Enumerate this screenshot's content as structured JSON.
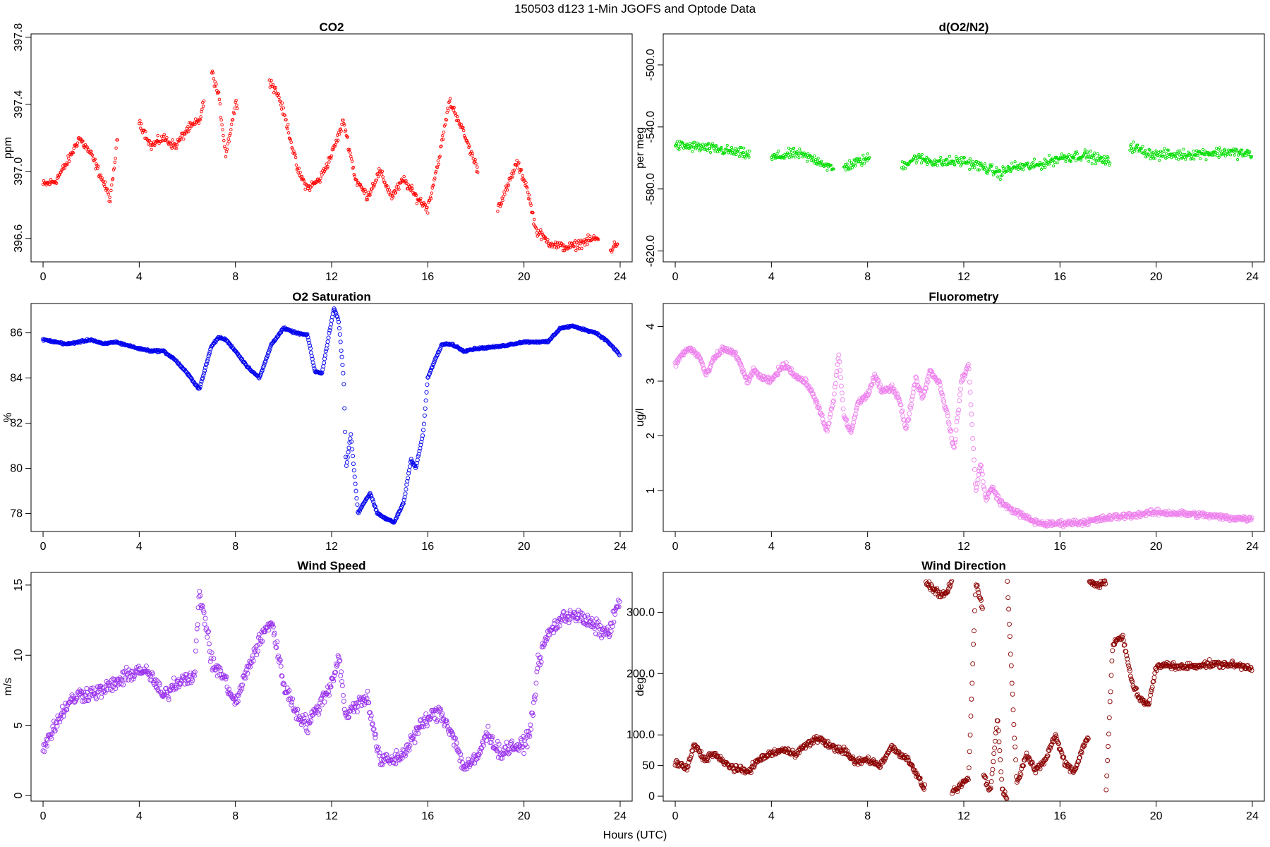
{
  "figure": {
    "title": "150503   d123   1-Min  JGOFS and Optode Data",
    "xlabel": "Hours (UTC)"
  },
  "chart_data": [
    {
      "type": "scatter",
      "title": "CO2",
      "ylabel": "ppm",
      "xlim": [
        -0.5,
        24.5
      ],
      "ylim": [
        396.46,
        397.82
      ],
      "yticks": [
        396.6,
        397.0,
        397.4,
        397.8
      ],
      "xticks": [
        0,
        4,
        8,
        12,
        16,
        20,
        24
      ],
      "ytick_rotate": true,
      "color": "#ff0000",
      "marker_r": 1.8,
      "spread": 0.04,
      "gaps": [
        [
          3.1,
          4.0
        ],
        [
          6.7,
          7.0
        ],
        [
          8.1,
          9.4
        ],
        [
          18.1,
          18.9
        ],
        [
          23.1,
          23.6
        ]
      ],
      "x": [
        0,
        0.5,
        1,
        1.5,
        2,
        2.5,
        2.8,
        3.1,
        4,
        4.5,
        5,
        5.5,
        6,
        6.5,
        7,
        7.3,
        7.6,
        8,
        9.4,
        9.8,
        10.2,
        10.6,
        11,
        11.5,
        12,
        12.5,
        13,
        13.5,
        14,
        14.5,
        15,
        15.5,
        16,
        16.5,
        16.9,
        17.3,
        17.7,
        18.1,
        18.9,
        19.3,
        19.7,
        20.1,
        20.5,
        21,
        21.5,
        22,
        22.5,
        23,
        23.6,
        23.9
      ],
      "values": [
        396.92,
        396.94,
        397.05,
        397.2,
        397.1,
        396.94,
        396.83,
        397.2,
        397.3,
        397.15,
        397.2,
        397.15,
        397.25,
        397.3,
        397.6,
        397.45,
        397.1,
        397.4,
        397.55,
        397.45,
        397.25,
        397.0,
        396.9,
        396.95,
        397.1,
        397.3,
        396.95,
        396.85,
        397.0,
        396.85,
        396.95,
        396.85,
        396.78,
        397.1,
        397.42,
        397.3,
        397.15,
        397.0,
        396.78,
        396.9,
        397.05,
        396.92,
        396.65,
        396.58,
        396.55,
        396.55,
        396.58,
        396.6,
        396.53,
        396.58
      ]
    },
    {
      "type": "scatter",
      "title": "d(O2/N2)",
      "ylabel": "per meg",
      "xlim": [
        -0.5,
        24.5
      ],
      "ylim": [
        -627,
        -480
      ],
      "yticks": [
        -620,
        -580,
        -540,
        -500
      ],
      "xticks": [
        0,
        4,
        8,
        12,
        16,
        20,
        24
      ],
      "ytick_rotate": true,
      "color": "#00dd00",
      "marker_r": 1.6,
      "spread": 5,
      "gaps": [
        [
          3.1,
          4.0
        ],
        [
          6.6,
          7.0
        ],
        [
          8.1,
          9.4
        ],
        [
          18.1,
          18.9
        ]
      ],
      "x": [
        0,
        1,
        2,
        3.1,
        4,
        5,
        6,
        6.6,
        7,
        8.1,
        9.4,
        10,
        11,
        12,
        13,
        13.5,
        14,
        15,
        16,
        17,
        18.1,
        18.9,
        19.5,
        20,
        21,
        22,
        23,
        24
      ],
      "values": [
        -552,
        -553,
        -555,
        -558,
        -560,
        -557,
        -562,
        -568,
        -566,
        -560,
        -565,
        -560,
        -563,
        -562,
        -567,
        -570,
        -566,
        -565,
        -560,
        -558,
        -563,
        -552,
        -556,
        -558,
        -558,
        -557,
        -556,
        -558
      ]
    },
    {
      "type": "scatter",
      "title": "O2 Saturation",
      "ylabel": "%",
      "xlim": [
        -0.5,
        24.5
      ],
      "ylim": [
        77.2,
        87.3
      ],
      "yticks": [
        78,
        80,
        82,
        84,
        86
      ],
      "xticks": [
        0,
        4,
        8,
        12,
        16,
        20,
        24
      ],
      "ytick_rotate": false,
      "color": "#0000ee",
      "marker_r": 2.6,
      "spread": 0.06,
      "gaps": [],
      "x": [
        0,
        0.5,
        1,
        1.5,
        2,
        2.5,
        3,
        4,
        4.5,
        5,
        5.5,
        6,
        6.5,
        7,
        7.3,
        7.6,
        8,
        8.5,
        9,
        9.5,
        10,
        10.5,
        11,
        11.3,
        11.6,
        11.9,
        12.1,
        12.3,
        12.5,
        12.6,
        12.8,
        12.9,
        13.1,
        13.3,
        13.6,
        13.9,
        14.2,
        14.6,
        15,
        15.3,
        15.5,
        15.8,
        16,
        16.3,
        16.6,
        17,
        17.5,
        18,
        19,
        20,
        21,
        21.5,
        22,
        23,
        23.5,
        24
      ],
      "values": [
        85.7,
        85.6,
        85.5,
        85.6,
        85.7,
        85.5,
        85.6,
        85.3,
        85.2,
        85.2,
        84.8,
        84.2,
        83.5,
        85.4,
        85.8,
        85.7,
        85.2,
        84.5,
        84.0,
        85.5,
        86.2,
        86.0,
        85.9,
        84.3,
        84.2,
        86.0,
        87.1,
        86.5,
        84.0,
        80.0,
        81.5,
        80.3,
        78.0,
        78.4,
        78.9,
        78.0,
        77.8,
        77.6,
        78.5,
        80.4,
        80.0,
        81.5,
        84.0,
        84.8,
        85.5,
        85.5,
        85.2,
        85.3,
        85.4,
        85.6,
        85.6,
        86.2,
        86.3,
        86.0,
        85.6,
        85.0
      ]
    },
    {
      "type": "scatter",
      "title": "Fluorometry",
      "ylabel": "ug/l",
      "xlim": [
        -0.5,
        24.5
      ],
      "ylim": [
        0.25,
        4.42
      ],
      "yticks": [
        1,
        2,
        3,
        4
      ],
      "xticks": [
        0,
        4,
        8,
        12,
        16,
        20,
        24
      ],
      "ytick_rotate": true,
      "color": "#ee82ee",
      "marker_r": 3.0,
      "spread": 0.08,
      "gaps": [],
      "x": [
        0,
        0.3,
        0.6,
        1,
        1.3,
        1.6,
        2,
        2.5,
        3,
        3.3,
        3.6,
        4,
        4.3,
        4.6,
        5,
        5.5,
        6,
        6.3,
        6.6,
        6.8,
        7,
        7.3,
        7.6,
        8,
        8.3,
        8.6,
        9,
        9.3,
        9.6,
        10,
        10.3,
        10.6,
        11,
        11.3,
        11.6,
        11.9,
        12.2,
        12.5,
        12.7,
        12.9,
        13.2,
        13.5,
        13.8,
        14.2,
        14.6,
        15,
        15.5,
        16,
        17,
        18,
        19,
        20,
        21,
        22,
        23,
        24
      ],
      "values": [
        3.3,
        3.5,
        3.6,
        3.45,
        3.1,
        3.4,
        3.6,
        3.5,
        3.0,
        3.2,
        3.05,
        3.0,
        3.2,
        3.3,
        3.1,
        2.95,
        2.5,
        2.05,
        2.7,
        3.5,
        2.4,
        2.05,
        2.6,
        2.75,
        3.1,
        2.8,
        2.9,
        2.7,
        2.1,
        3.05,
        2.7,
        3.2,
        2.95,
        2.4,
        1.75,
        3.0,
        3.3,
        1.0,
        1.5,
        0.85,
        1.05,
        0.8,
        0.7,
        0.6,
        0.5,
        0.42,
        0.38,
        0.4,
        0.42,
        0.5,
        0.55,
        0.6,
        0.58,
        0.55,
        0.5,
        0.48
      ]
    },
    {
      "type": "scatter",
      "title": "Wind Speed",
      "ylabel": "m/s",
      "xlim": [
        -0.5,
        24.5
      ],
      "ylim": [
        -0.4,
        15.9
      ],
      "yticks": [
        0,
        5,
        10,
        15
      ],
      "xticks": [
        0,
        4,
        8,
        12,
        16,
        20,
        24
      ],
      "ytick_rotate": true,
      "color": "#9a32ee",
      "marker_r": 3.0,
      "spread": 0.8,
      "gaps": [],
      "x": [
        0,
        0.5,
        1,
        1.5,
        2,
        2.5,
        3,
        3.5,
        4,
        4.5,
        5,
        5.5,
        6,
        6.3,
        6.5,
        6.8,
        7,
        7.5,
        8,
        8.5,
        9,
        9.5,
        10,
        10.5,
        11,
        11.5,
        12,
        12.3,
        12.6,
        13,
        13.5,
        14,
        14.5,
        15,
        15.5,
        16,
        16.5,
        17,
        17.5,
        18,
        18.5,
        19,
        19.5,
        20,
        20.3,
        20.6,
        21,
        21.5,
        22,
        22.5,
        23,
        23.5,
        24
      ],
      "values": [
        3.5,
        5.0,
        6.5,
        7.2,
        7.3,
        7.5,
        8.0,
        8.5,
        9.0,
        8.5,
        7.0,
        8.0,
        8.5,
        8.5,
        14.5,
        12.0,
        9.5,
        8.5,
        6.5,
        9.0,
        11.0,
        12.5,
        8.0,
        6.0,
        5.0,
        6.5,
        8.0,
        10.0,
        5.5,
        6.5,
        7.0,
        2.5,
        2.5,
        3.0,
        4.5,
        5.5,
        6.0,
        4.5,
        2.0,
        2.5,
        4.5,
        3.0,
        3.5,
        3.5,
        5.0,
        9.5,
        11.5,
        12.5,
        13.0,
        12.5,
        12.0,
        11.5,
        14.0
      ]
    },
    {
      "type": "scatter",
      "title": "Wind Direction",
      "ylabel": "deg",
      "xlim": [
        -0.5,
        24.5
      ],
      "ylim": [
        -8,
        365
      ],
      "yticks": [
        0,
        50,
        100,
        200,
        300
      ],
      "xticks": [
        0,
        4,
        8,
        12,
        16,
        20,
        24
      ],
      "ytick_rotate": false,
      "color": "#8b0000",
      "marker_r": 3.0,
      "spread": 8,
      "gaps": [
        [
          10.4,
          10.41
        ],
        [
          11.5,
          11.51
        ],
        [
          12.8,
          12.81
        ],
        [
          13.8,
          13.81
        ],
        [
          17.2,
          17.21
        ],
        [
          17.9,
          17.91
        ]
      ],
      "x": [
        0,
        0.5,
        0.8,
        1.2,
        1.6,
        2,
        2.5,
        3,
        3.5,
        4,
        4.5,
        5,
        5.5,
        6,
        6.5,
        7,
        7.5,
        8,
        8.5,
        9,
        9.5,
        9.8,
        10.1,
        10.4,
        10.41,
        10.8,
        11.2,
        11.5,
        11.51,
        11.8,
        12.2,
        12.5,
        12.8,
        12.81,
        13.1,
        13.4,
        13.6,
        13.8,
        13.81,
        14.2,
        14.6,
        15,
        15.4,
        15.8,
        16.2,
        16.6,
        17,
        17.2,
        17.21,
        17.5,
        17.9,
        17.91,
        18.2,
        18.6,
        19,
        19.3,
        19.7,
        20,
        20.5,
        21,
        22,
        23,
        24
      ],
      "values": [
        55,
        45,
        85,
        60,
        70,
        55,
        45,
        40,
        60,
        70,
        75,
        70,
        85,
        95,
        80,
        75,
        55,
        60,
        50,
        80,
        65,
        55,
        30,
        10,
        350,
        335,
        325,
        350,
        5,
        15,
        30,
        350,
        305,
        40,
        5,
        130,
        10,
        0,
        350,
        20,
        70,
        40,
        60,
        100,
        55,
        40,
        85,
        95,
        350,
        345,
        350,
        5,
        250,
        260,
        185,
        160,
        150,
        210,
        215,
        210,
        215,
        215,
        210
      ]
    }
  ]
}
